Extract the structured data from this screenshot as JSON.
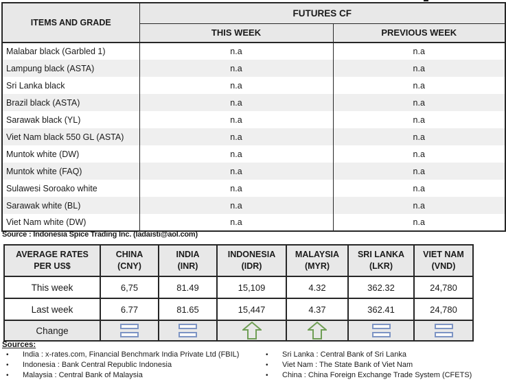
{
  "futures_table": {
    "header": {
      "items_col": "ITEMS AND GRADE",
      "group": "FUTURES CF",
      "col_this_week": "THIS WEEK",
      "col_previous_week": "PREVIOUS WEEK"
    },
    "rows": [
      {
        "item": "Malabar black (Garbled 1)",
        "this_week": "n.a",
        "previous_week": "n.a"
      },
      {
        "item": "Lampung black (ASTA)",
        "this_week": "n.a",
        "previous_week": "n.a"
      },
      {
        "item": "Sri Lanka black",
        "this_week": "n.a",
        "previous_week": "n.a"
      },
      {
        "item": "Brazil black (ASTA)",
        "this_week": "n.a",
        "previous_week": "n.a"
      },
      {
        "item": "Sarawak black (YL)",
        "this_week": "n.a",
        "previous_week": "n.a"
      },
      {
        "item": "Viet Nam black 550 GL (ASTA)",
        "this_week": "n.a",
        "previous_week": "n.a"
      },
      {
        "item": "Muntok white (DW)",
        "this_week": "n.a",
        "previous_week": "n.a"
      },
      {
        "item": "Muntok white (FAQ)",
        "this_week": "n.a",
        "previous_week": "n.a"
      },
      {
        "item": "Sulawesi Soroako white",
        "this_week": "n.a",
        "previous_week": "n.a"
      },
      {
        "item": "Sarawak  white (BL)",
        "this_week": "n.a",
        "previous_week": "n.a"
      },
      {
        "item": "Viet Nam white (DW)",
        "this_week": "n.a",
        "previous_week": "n.a"
      }
    ],
    "source_note": "Source : Indonesia Spice Trading Inc. (ladaisti@aol.com)"
  },
  "rates_table": {
    "label_line1": "AVERAGE RATES",
    "label_line2": "PER US$",
    "columns": [
      {
        "name": "CHINA",
        "code": "(CNY)"
      },
      {
        "name": "INDIA",
        "code": "(INR)"
      },
      {
        "name": "INDONESIA",
        "code": "(IDR)"
      },
      {
        "name": "MALAYSIA",
        "code": "(MYR)"
      },
      {
        "name": "SRI LANKA",
        "code": "(LKR)"
      },
      {
        "name": "VIET NAM",
        "code": "(VND)"
      }
    ],
    "row_labels": {
      "this_week": "This week",
      "last_week": "Last week",
      "change": "Change"
    },
    "this_week": [
      "6,75",
      "81.49",
      "15,109",
      "4.32",
      "362.32",
      "24,780"
    ],
    "last_week": [
      "6.77",
      "81.65",
      "15,447",
      "4.37",
      "362.41",
      "24,780"
    ],
    "change": [
      "equal",
      "equal",
      "up",
      "up",
      "equal",
      "equal"
    ],
    "icon_colors": {
      "equal": "#7d94c4",
      "up": "#6f9e55"
    }
  },
  "sources": {
    "heading": "Sources:",
    "bullet": "•",
    "left": [
      "India : x-rates.com, Financial Benchmark India Private Ltd (FBIL)",
      "Indonesia : Bank Central Republic Indonesia",
      "Malaysia : Central Bank of Malaysia"
    ],
    "right": [
      "Sri Lanka : Central Bank of Sri Lanka",
      "Viet Nam : The State Bank of Viet Nam",
      "China : China Foreign Exchange Trade System (CFETS)"
    ]
  }
}
